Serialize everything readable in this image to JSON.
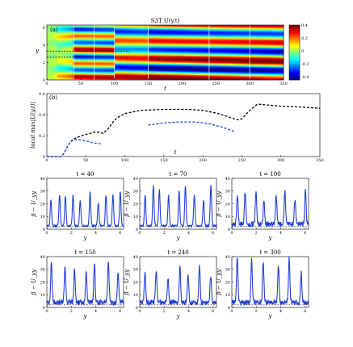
{
  "chart_data": [
    {
      "id": "panel-a",
      "type": "heatmap",
      "panel_label": "(a)",
      "title": "S3T  U(y,t)",
      "xlabel": "t",
      "ylabel": "y",
      "xlim": [
        0,
        350
      ],
      "ylim": [
        0,
        6.28
      ],
      "xticks": [
        "0",
        "50",
        "100",
        "150",
        "200",
        "250",
        "300",
        "350"
      ],
      "yticks": [
        "0",
        "2",
        "4",
        "6"
      ],
      "colorbar": {
        "ticks": [
          "0.4",
          "0.2",
          "0",
          "-0.2",
          "-0.4"
        ],
        "range": [
          -0.45,
          0.4
        ]
      },
      "vlines": [
        40,
        70,
        100,
        150,
        240,
        300
      ],
      "dashed_lines": [
        {
          "y0": 3.3,
          "y1": 3.3,
          "x0": 0,
          "x1": 40
        },
        {
          "y0": 2.6,
          "y1": 2.6,
          "x0": 0,
          "x1": 40
        }
      ]
    },
    {
      "id": "panel-b",
      "type": "line",
      "panel_label": "(b)",
      "xlabel": "t",
      "ylabel": "local max|U(y,t)|",
      "xlim": [
        0,
        350
      ],
      "ylim": [
        0,
        0.6
      ],
      "xticks": [
        "0",
        "50",
        "100",
        "150",
        "200",
        "250",
        "300",
        "350"
      ],
      "yticks": [
        "0",
        "0.2",
        "0.4",
        "0.6"
      ],
      "series": [
        {
          "color": "#000000",
          "dash": true,
          "x": [
            0,
            10,
            18,
            22,
            26,
            30,
            35,
            45,
            55,
            62,
            68,
            72,
            78,
            85,
            90,
            100,
            120,
            150,
            180,
            200,
            220,
            240,
            245,
            250,
            260,
            270,
            300,
            330,
            350
          ],
          "y": [
            0,
            0,
            0,
            0.03,
            0.09,
            0.14,
            0.17,
            0.2,
            0.22,
            0.235,
            0.23,
            0.22,
            0.26,
            0.33,
            0.37,
            0.41,
            0.44,
            0.45,
            0.45,
            0.44,
            0.41,
            0.36,
            0.35,
            0.36,
            0.44,
            0.5,
            0.48,
            0.47,
            0.46
          ]
        },
        {
          "color": "#1f3fd6",
          "dash": true,
          "x": [
            0,
            10,
            18,
            22,
            26,
            30,
            35,
            40,
            50,
            60,
            70
          ],
          "y": [
            0,
            0,
            0,
            0.03,
            0.09,
            0.14,
            0.16,
            0.16,
            0.15,
            0.13,
            0.12
          ]
        },
        {
          "color": "#1f3fd6",
          "dash": true,
          "x": [
            130,
            150,
            170,
            190,
            210,
            225,
            240
          ],
          "y": [
            0.3,
            0.32,
            0.33,
            0.33,
            0.31,
            0.28,
            0.24
          ]
        }
      ]
    },
    {
      "id": "panel-t40",
      "type": "line",
      "title": "t = 40",
      "xlabel": "y",
      "ylabel": "β − U_yy",
      "xlim": [
        0,
        6.28
      ],
      "ylim": [
        0,
        40
      ],
      "xticks": [
        "0",
        "2",
        "4",
        "6"
      ],
      "yticks": [
        "0",
        "10",
        "20",
        "30",
        "40"
      ],
      "n_peaks": 10,
      "peak_height": 30,
      "seed": 1
    },
    {
      "id": "panel-t70",
      "type": "line",
      "title": "t = 70",
      "xlabel": "y",
      "ylabel": "β − U_yy",
      "xlim": [
        0,
        6.28
      ],
      "ylim": [
        0,
        40
      ],
      "xticks": [
        "0",
        "2",
        "4",
        "6"
      ],
      "yticks": [
        "0",
        "10",
        "20",
        "30",
        "40"
      ],
      "n_peaks": 9,
      "peak_height": 33,
      "seed": 2
    },
    {
      "id": "panel-t100",
      "type": "line",
      "title": "t = 100",
      "xlabel": "y",
      "ylabel": "β − U_yy",
      "xlim": [
        0,
        6.28
      ],
      "ylim": [
        0,
        40
      ],
      "xticks": [
        "0",
        "2",
        "4",
        "6"
      ],
      "yticks": [
        "0",
        "10",
        "20",
        "30",
        "40"
      ],
      "n_peaks": 8,
      "peak_height": 32,
      "seed": 3
    },
    {
      "id": "panel-t150",
      "type": "line",
      "title": "t = 150",
      "xlabel": "y",
      "ylabel": "β − U_yy",
      "xlim": [
        0,
        6.28
      ],
      "ylim": [
        0,
        40
      ],
      "xticks": [
        "0",
        "2",
        "4",
        "6"
      ],
      "yticks": [
        "0",
        "10",
        "20",
        "30",
        "40"
      ],
      "n_peaks": 7,
      "peak_height": 35,
      "seed": 4
    },
    {
      "id": "panel-t240",
      "type": "line",
      "title": "t = 240",
      "xlabel": "y",
      "ylabel": "β − U_yy",
      "xlim": [
        0,
        6.28
      ],
      "ylim": [
        0,
        40
      ],
      "xticks": [
        "0",
        "2",
        "4",
        "6"
      ],
      "yticks": [
        "0",
        "10",
        "20",
        "30",
        "40"
      ],
      "n_peaks": 7,
      "peak_height": 30,
      "seed": 5
    },
    {
      "id": "panel-t300",
      "type": "line",
      "title": "t = 300",
      "xlabel": "y",
      "ylabel": "β − U_yy",
      "xlim": [
        0,
        6.28
      ],
      "ylim": [
        0,
        40
      ],
      "xticks": [
        "0",
        "2",
        "4",
        "6"
      ],
      "yticks": [
        "0",
        "10",
        "20",
        "30",
        "40"
      ],
      "n_peaks": 6,
      "peak_height": 38,
      "seed": 6
    }
  ]
}
